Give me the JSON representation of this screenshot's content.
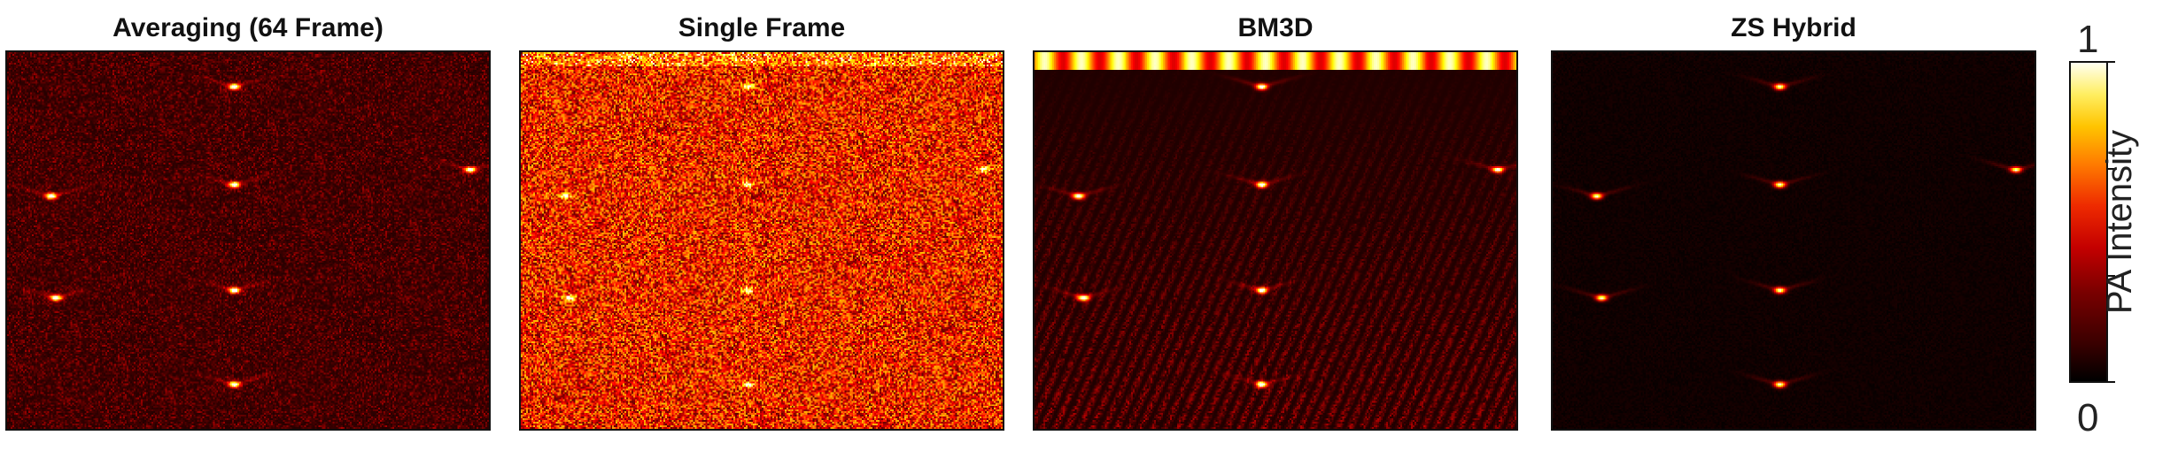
{
  "panels": [
    {
      "title": "Averaging (64 Frame)"
    },
    {
      "title": "Single Frame"
    },
    {
      "title": "BM3D"
    },
    {
      "title": "ZS Hybrid"
    }
  ],
  "colorbar": {
    "label": "PA Intensity",
    "max_label": "1",
    "min_label": "0",
    "colormap": "hot"
  }
}
